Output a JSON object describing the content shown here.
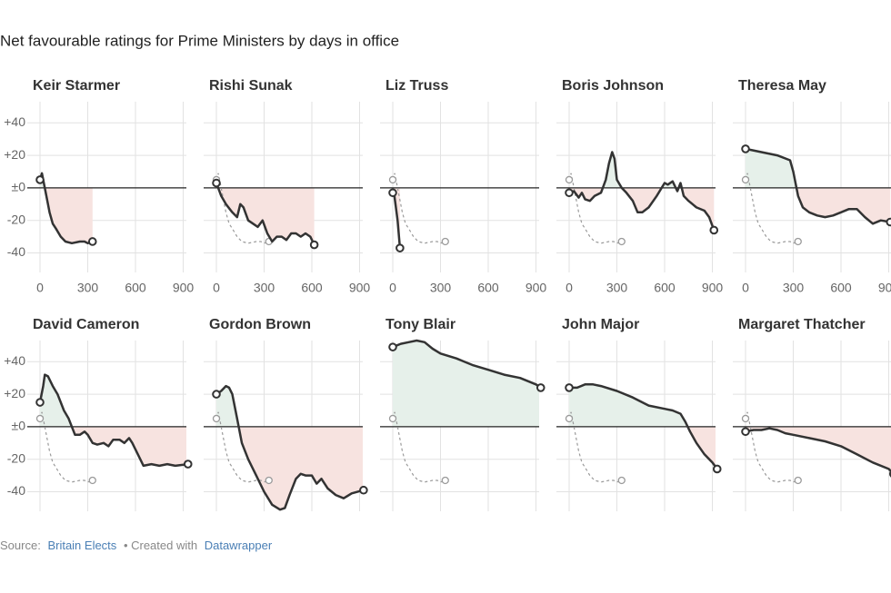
{
  "chart_data": {
    "type": "line",
    "title": "Net favourable ratings for Prime Ministers by days in office",
    "xlim": [
      -80,
      920
    ],
    "xticks": [
      0,
      300,
      600,
      900
    ],
    "ylim": [
      -52,
      53
    ],
    "yticks": [
      {
        "value": 40,
        "label": "+40"
      },
      {
        "value": 20,
        "label": "+20"
      },
      {
        "value": 0,
        "label": "±0"
      },
      -20,
      -40
    ],
    "color": "#333333",
    "positive_color": "#e6f0ea",
    "negative_color": "#f7e3e0",
    "reference_color": "#9a9a9a",
    "panels": [
      {
        "name": "Keir Starmer",
        "x": [
          0,
          12,
          20,
          40,
          60,
          80,
          100,
          130,
          160,
          200,
          250,
          280,
          300,
          330
        ],
        "values": [
          5,
          9,
          5,
          -5,
          -15,
          -22,
          -25,
          -30,
          -33,
          -34,
          -33,
          -33,
          -34,
          -33
        ]
      },
      {
        "name": "Rishi Sunak",
        "x": [
          0,
          30,
          60,
          100,
          130,
          150,
          170,
          200,
          230,
          260,
          290,
          320,
          350,
          380,
          410,
          440,
          470,
          500,
          530,
          560,
          590,
          615
        ],
        "values": [
          3,
          -5,
          -10,
          -15,
          -18,
          -10,
          -12,
          -20,
          -22,
          -24,
          -20,
          -28,
          -33,
          -30,
          -30,
          -32,
          -28,
          -28,
          -30,
          -28,
          -30,
          -35
        ]
      },
      {
        "name": "Liz Truss",
        "x": [
          0,
          10,
          30,
          45
        ],
        "values": [
          -3,
          -5,
          -20,
          -37
        ]
      },
      {
        "name": "Boris Johnson",
        "x": [
          0,
          30,
          60,
          80,
          100,
          130,
          160,
          200,
          230,
          250,
          270,
          285,
          300,
          330,
          360,
          400,
          430,
          460,
          500,
          550,
          600,
          620,
          650,
          680,
          700,
          720,
          750,
          800,
          850,
          880,
          910
        ],
        "values": [
          -3,
          -2,
          -6,
          -3,
          -7,
          -8,
          -5,
          -3,
          5,
          15,
          22,
          18,
          5,
          0,
          -3,
          -8,
          -15,
          -15,
          -12,
          -5,
          3,
          2,
          4,
          -2,
          3,
          -5,
          -8,
          -12,
          -14,
          -18,
          -26
        ]
      },
      {
        "name": "Theresa May",
        "x": [
          0,
          100,
          200,
          280,
          300,
          330,
          360,
          400,
          450,
          500,
          550,
          600,
          650,
          700,
          750,
          800,
          850,
          910
        ],
        "values": [
          24,
          22,
          20,
          17,
          10,
          -5,
          -12,
          -15,
          -17,
          -18,
          -17,
          -15,
          -13,
          -13,
          -18,
          -22,
          -20,
          -21
        ]
      },
      {
        "name": "David Cameron",
        "x": [
          0,
          20,
          30,
          50,
          80,
          110,
          150,
          180,
          200,
          220,
          250,
          280,
          300,
          330,
          360,
          400,
          430,
          460,
          500,
          530,
          560,
          580,
          620,
          650,
          700,
          750,
          800,
          850,
          930
        ],
        "values": [
          15,
          25,
          32,
          31,
          25,
          20,
          10,
          5,
          0,
          -5,
          -5,
          -3,
          -5,
          -10,
          -11,
          -10,
          -12,
          -8,
          -8,
          -10,
          -7,
          -10,
          -18,
          -24,
          -23,
          -24,
          -23,
          -24,
          -23
        ]
      },
      {
        "name": "Gordon Brown",
        "x": [
          0,
          30,
          60,
          80,
          100,
          130,
          160,
          200,
          250,
          300,
          350,
          400,
          430,
          460,
          500,
          530,
          560,
          600,
          630,
          660,
          700,
          750,
          800,
          850,
          925
        ],
        "values": [
          20,
          22,
          25,
          24,
          20,
          5,
          -10,
          -20,
          -30,
          -40,
          -48,
          -51,
          -50,
          -42,
          -32,
          -29,
          -30,
          -30,
          -35,
          -32,
          -38,
          -42,
          -44,
          -41,
          -39
        ]
      },
      {
        "name": "Tony Blair",
        "x": [
          0,
          50,
          100,
          150,
          200,
          250,
          300,
          400,
          500,
          600,
          700,
          800,
          900,
          930
        ],
        "values": [
          49,
          51,
          52,
          53,
          52,
          48,
          45,
          42,
          38,
          35,
          32,
          30,
          26,
          24
        ]
      },
      {
        "name": "John Major",
        "x": [
          0,
          50,
          100,
          150,
          200,
          300,
          400,
          500,
          600,
          650,
          700,
          730,
          760,
          800,
          850,
          900,
          930
        ],
        "values": [
          24,
          24,
          26,
          26,
          25,
          22,
          18,
          13,
          11,
          10,
          8,
          3,
          -3,
          -10,
          -17,
          -22,
          -26
        ]
      },
      {
        "name": "Margaret Thatcher",
        "x": [
          0,
          50,
          100,
          150,
          200,
          250,
          300,
          400,
          500,
          600,
          700,
          800,
          900,
          930
        ],
        "values": [
          -3,
          -2,
          -2,
          -1,
          -2,
          -4,
          -5,
          -7,
          -9,
          -12,
          -17,
          -22,
          -26,
          -29
        ]
      }
    ],
    "source": {
      "label": "Source:",
      "name": "Britain Elects",
      "credit": "• Created with",
      "tool": "Datawrapper"
    }
  }
}
